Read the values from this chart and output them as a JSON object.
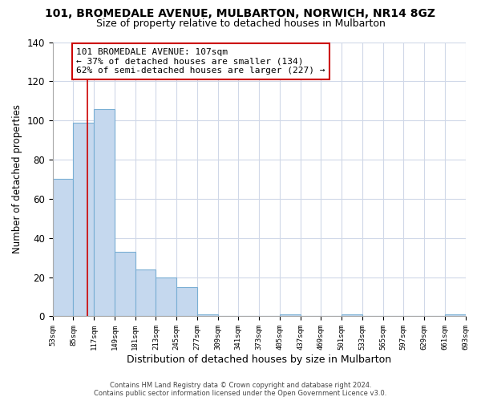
{
  "title": "101, BROMEDALE AVENUE, MULBARTON, NORWICH, NR14 8GZ",
  "subtitle": "Size of property relative to detached houses in Mulbarton",
  "xlabel": "Distribution of detached houses by size in Mulbarton",
  "ylabel": "Number of detached properties",
  "bar_color": "#c5d8ee",
  "bar_edge_color": "#7aafd4",
  "vline_color": "#cc0000",
  "vline_x": 107,
  "annotation_line1": "101 BROMEDALE AVENUE: 107sqm",
  "annotation_line2": "← 37% of detached houses are smaller (134)",
  "annotation_line3": "62% of semi-detached houses are larger (227) →",
  "bin_edges": [
    53,
    85,
    117,
    149,
    181,
    213,
    245,
    277,
    309,
    341,
    373,
    405,
    437,
    469,
    501,
    533,
    565,
    597,
    629,
    661,
    693
  ],
  "bar_heights": [
    70,
    99,
    106,
    33,
    24,
    20,
    15,
    1,
    0,
    0,
    0,
    1,
    0,
    0,
    1,
    0,
    0,
    0,
    0,
    1
  ],
  "ylim": [
    0,
    140
  ],
  "yticks": [
    0,
    20,
    40,
    60,
    80,
    100,
    120,
    140
  ],
  "footer_line1": "Contains HM Land Registry data © Crown copyright and database right 2024.",
  "footer_line2": "Contains public sector information licensed under the Open Government Licence v3.0.",
  "background_color": "#ffffff",
  "grid_color": "#d0d8e8",
  "title_fontsize": 10,
  "subtitle_fontsize": 9
}
